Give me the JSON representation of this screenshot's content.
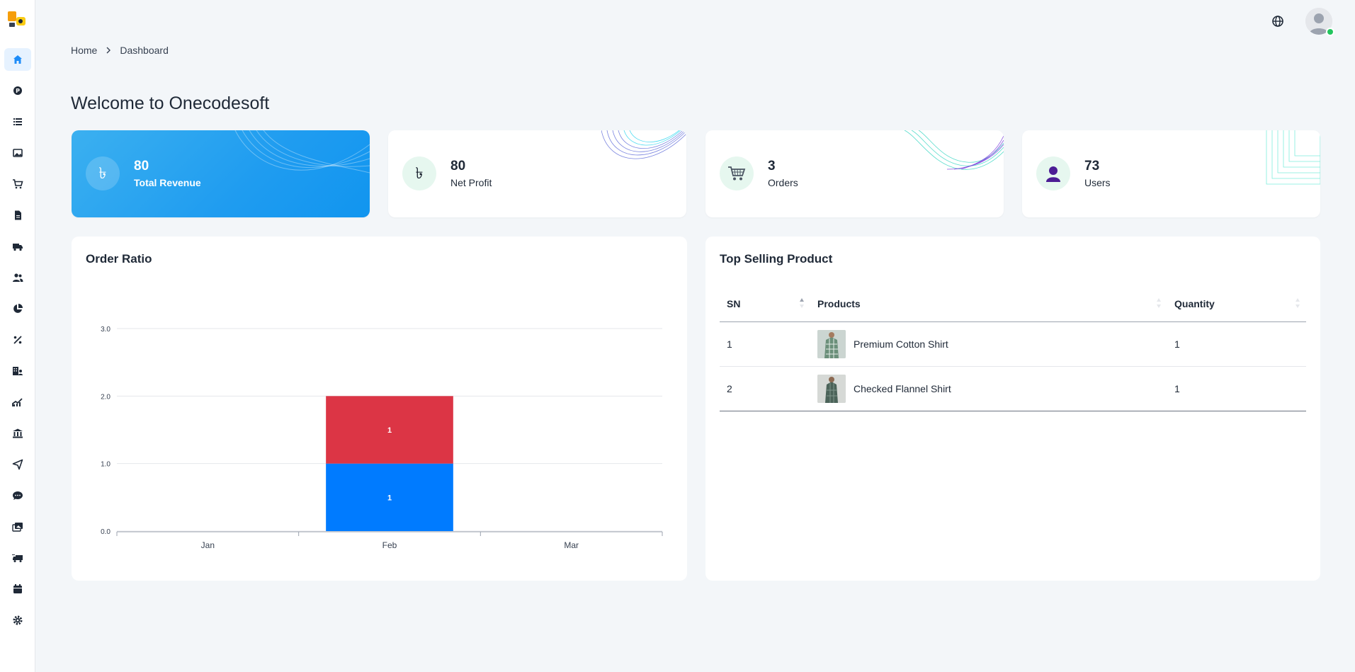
{
  "breadcrumb": {
    "home": "Home",
    "current": "Dashboard"
  },
  "page": {
    "title": "Welcome to Onecodesoft"
  },
  "stats": [
    {
      "value": "80",
      "label": "Total Revenue",
      "icon": "taka-icon"
    },
    {
      "value": "80",
      "label": "Net Profit",
      "icon": "taka-icon"
    },
    {
      "value": "3",
      "label": "Orders",
      "icon": "cart-icon"
    },
    {
      "value": "73",
      "label": "Users",
      "icon": "user-icon"
    }
  ],
  "order_ratio": {
    "title": "Order Ratio",
    "chart_data": {
      "type": "bar",
      "stacked": true,
      "categories": [
        "Jan",
        "Feb",
        "Mar"
      ],
      "series": [
        {
          "values": [
            0,
            1,
            0
          ],
          "color": "#007bff"
        },
        {
          "values": [
            0,
            1,
            0
          ],
          "color": "#dc3545"
        }
      ],
      "ylim": [
        0,
        3
      ],
      "yticks": [
        "0.0",
        "1.0",
        "2.0",
        "3.0"
      ],
      "grid": true
    }
  },
  "top_selling": {
    "title": "Top Selling Product",
    "columns": [
      "SN",
      "Products",
      "Quantity"
    ],
    "rows": [
      {
        "sn": "1",
        "product": "Premium Cotton Shirt",
        "quantity": "1"
      },
      {
        "sn": "2",
        "product": "Checked Flannel Shirt",
        "quantity": "1"
      }
    ]
  },
  "colors": {
    "accent": "#1f9cf0",
    "bar_blue": "#007bff",
    "bar_red": "#dc3545"
  }
}
